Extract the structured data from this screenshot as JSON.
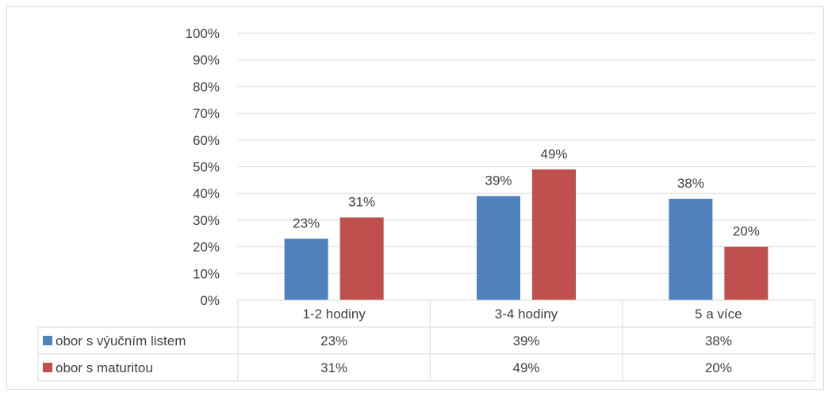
{
  "chart_data": {
    "type": "bar",
    "categories": [
      "1-2 hodiny",
      "3-4 hodiny",
      "5 a více"
    ],
    "series": [
      {
        "name": "obor s výučním listem",
        "values": [
          23,
          39,
          38
        ],
        "labels": [
          "23%",
          "39%",
          "38%"
        ],
        "color": "#4f81bd"
      },
      {
        "name": "obor s maturitou",
        "values": [
          31,
          49,
          20
        ],
        "labels": [
          "31%",
          "49%",
          "20%"
        ],
        "color": "#c0504d"
      }
    ],
    "ylim": [
      0,
      100
    ],
    "yticks": [
      "0%",
      "10%",
      "20%",
      "30%",
      "40%",
      "50%",
      "60%",
      "70%",
      "80%",
      "90%",
      "100%"
    ],
    "grid": true,
    "data_table": true
  }
}
